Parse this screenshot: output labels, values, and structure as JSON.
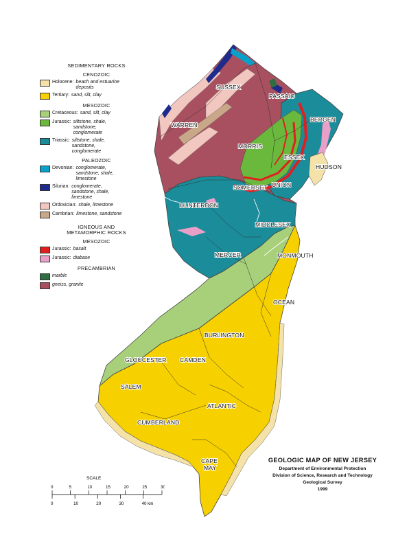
{
  "map": {
    "title": "GEOLOGIC MAP OF NEW JERSEY",
    "agency": "Department of Environmental Protection",
    "division": "Division of Science, Research and Technology",
    "survey": "Geological Survey",
    "year": "1999"
  },
  "legend": {
    "sedimentary_heading": "SEDIMENTARY ROCKS",
    "cenozoic": "CENOZOIC",
    "holocene": {
      "label": "Holocene:",
      "desc": "beach and estuarine deposits",
      "color": "#f4e2a8"
    },
    "tertiary": {
      "label": "Tertiary:",
      "desc": "sand, silt, clay",
      "color": "#f7d000"
    },
    "mesozoic": "MESOZOIC",
    "cretaceous": {
      "label": "Cretaceous:",
      "desc": "sand, silt, clay",
      "color": "#a8d07a"
    },
    "jurassic_sed": {
      "label": "Jurassic:",
      "desc": "siltstone, shale, sandstone, conglomerate",
      "color": "#6ab83c"
    },
    "triassic": {
      "label": "Triassic:",
      "desc": "siltstone, shale, sandstone, conglomerate",
      "color": "#1a8c9a"
    },
    "paleozoic": "PALEOZOIC",
    "devonian": {
      "label": "Devonian:",
      "desc": "conglomerate, sandstone, shale, limestone",
      "color": "#0aa0c8"
    },
    "silurian": {
      "label": "Silurian:",
      "desc": "conglomerate, sandstone, shale, limestone",
      "color": "#1e2a8c"
    },
    "ordovician": {
      "label": "Ordovician:",
      "desc": "shale, limestone",
      "color": "#f2c7c0"
    },
    "cambrian": {
      "label": "Cambrian:",
      "desc": "limestone, sandstone",
      "color": "#c8a888"
    },
    "igneous_heading": "IGNEOUS AND METAMORPHIC ROCKS",
    "mesozoic2": "MESOZOIC",
    "jurassic_basalt": {
      "label": "Jurassic:",
      "desc": "basalt",
      "color": "#e02020"
    },
    "jurassic_diabase": {
      "label": "Jurassic:",
      "desc": "diabase",
      "color": "#e8a0c8"
    },
    "precambrian": "PRECAMBRIAN",
    "marble": {
      "desc": "marble",
      "color": "#2e6e40"
    },
    "gneiss": {
      "desc": "gneiss, granite",
      "color": "#a85060"
    }
  },
  "scale": {
    "title": "SCALE",
    "mi_ticks": [
      "0",
      "5",
      "10",
      "15",
      "20",
      "25",
      "30 mi"
    ],
    "km_ticks": [
      "0",
      "10",
      "20",
      "30",
      "40 km"
    ]
  },
  "counties": [
    "SUSSEX",
    "PASSAIC",
    "BERGEN",
    "WARREN",
    "MORRIS",
    "ESSEX",
    "HUDSON",
    "UNION",
    "SOMERSET",
    "HUNTERDON",
    "MIDDLESEX",
    "MERCER",
    "MONMOUTH",
    "OCEAN",
    "BURLINGTON",
    "GLOUCESTER",
    "CAMDEN",
    "SALEM",
    "ATLANTIC",
    "CUMBERLAND",
    "CAPE",
    "MAY"
  ],
  "colors": {
    "tertiary": "#f7d000",
    "cretaceous": "#a8d07a",
    "triassic": "#1a8c9a",
    "gneiss": "#a85060",
    "ordovician": "#f2c7c0",
    "silurian": "#1e2a8c",
    "basalt": "#e02020",
    "jurassic_sed": "#6ab83c",
    "holocene": "#f4e2a8",
    "diabase": "#e8a0c8",
    "devonian": "#0aa0c8",
    "cambrian": "#c8a888"
  }
}
